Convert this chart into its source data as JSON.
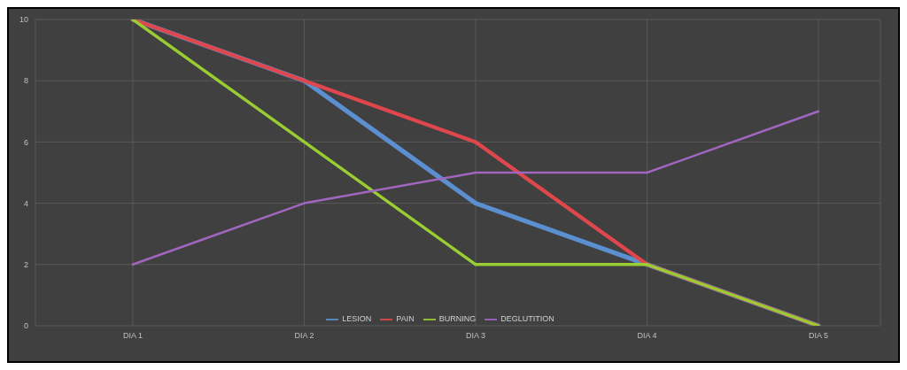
{
  "chart_data": {
    "type": "line",
    "categories": [
      "DIA 1",
      "DIA 2",
      "DIA 3",
      "DIA 4",
      "DIA 5"
    ],
    "series": [
      {
        "name": "LESION",
        "color": "#5b8fd0",
        "values": [
          10,
          8,
          4,
          2,
          0
        ]
      },
      {
        "name": "PAIN",
        "color": "#e0474c",
        "values": [
          10,
          8,
          6,
          2,
          0
        ]
      },
      {
        "name": "BURNING",
        "color": "#9acd32",
        "values": [
          10,
          6,
          2,
          2,
          0
        ]
      },
      {
        "name": "DEGLUTITION",
        "color": "#a066c0",
        "values": [
          2,
          4,
          5,
          5,
          7
        ]
      }
    ],
    "ylim": [
      0,
      10
    ],
    "yticks": [
      0,
      2,
      4,
      6,
      8,
      10
    ],
    "grid": true,
    "legend": "bottom",
    "marker": "none",
    "line_style": "solid"
  }
}
